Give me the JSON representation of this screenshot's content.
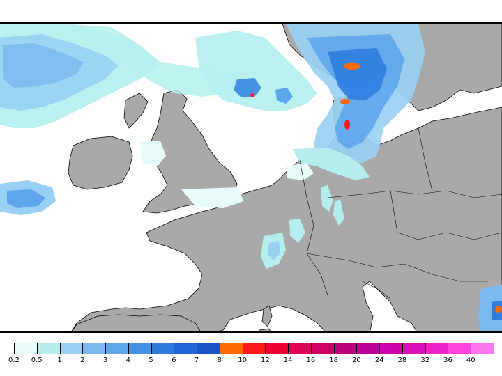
{
  "map": {
    "land_color": "#a9a9a9",
    "sea_color": "#ffffff",
    "coast_color": "#000000"
  },
  "legend": {
    "ticks": [
      "0.2",
      "0.5",
      "1",
      "2",
      "3",
      "4",
      "5",
      "6",
      "7",
      "8",
      "10",
      "12",
      "14",
      "16",
      "18",
      "20",
      "24",
      "28",
      "32",
      "36",
      "40"
    ],
    "colors": [
      "#e8fbfb",
      "#b4eeee",
      "#97d0f2",
      "#7ab8ee",
      "#5ea6ec",
      "#4491e6",
      "#2f7ddf",
      "#2166d6",
      "#1a55c8",
      "#ff6a00",
      "#ff1a1a",
      "#ee0033",
      "#dd0055",
      "#cc0066",
      "#bb0077",
      "#bb0099",
      "#cc00aa",
      "#dd11bb",
      "#ee22cc",
      "#ff44dd",
      "#ff77ee"
    ]
  }
}
